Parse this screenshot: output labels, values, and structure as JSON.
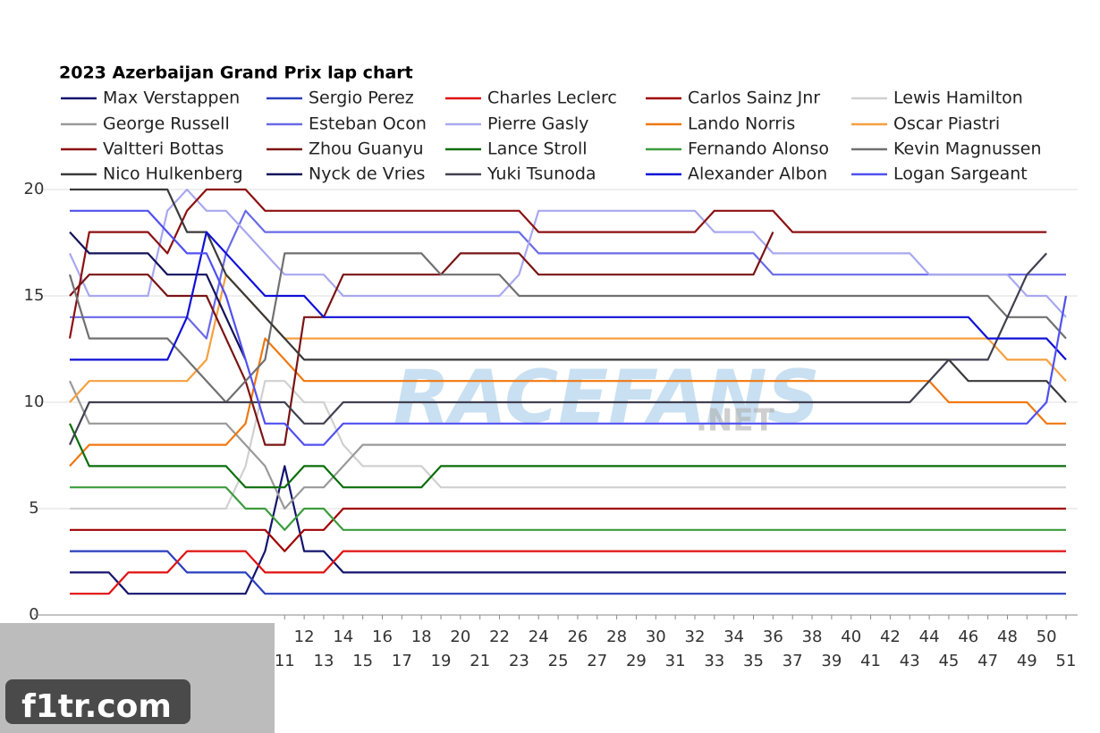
{
  "chart_data": {
    "type": "line",
    "title": "2023 Azerbaijan Grand Prix lap chart",
    "x": [
      0,
      1,
      2,
      3,
      4,
      5,
      6,
      7,
      8,
      9,
      10,
      11,
      12,
      13,
      14,
      15,
      16,
      17,
      18,
      19,
      20,
      21,
      22,
      23,
      24,
      25,
      26,
      27,
      28,
      29,
      30,
      31,
      32,
      33,
      34,
      35,
      36,
      37,
      38,
      39,
      40,
      41,
      42,
      43,
      44,
      45,
      46,
      47,
      48,
      49,
      50,
      51
    ],
    "xlim": [
      0,
      51
    ],
    "xticks": [
      11,
      12,
      13,
      14,
      15,
      16,
      17,
      18,
      19,
      20,
      21,
      22,
      23,
      24,
      25,
      26,
      27,
      28,
      29,
      30,
      31,
      32,
      33,
      34,
      35,
      36,
      37,
      38,
      39,
      40,
      41,
      42,
      43,
      44,
      45,
      46,
      47,
      48,
      49,
      50,
      51
    ],
    "ylim": [
      0,
      20
    ],
    "yticks": [
      0,
      5,
      10,
      15,
      20
    ],
    "grid": true,
    "series": [
      {
        "name": "Max Verstappen",
        "color": "#14146e",
        "values": [
          2,
          2,
          2,
          1,
          1,
          1,
          1,
          1,
          1,
          1,
          3,
          7,
          3,
          3,
          2,
          2,
          2,
          2,
          2,
          2,
          2,
          2,
          2,
          2,
          2,
          2,
          2,
          2,
          2,
          2,
          2,
          2,
          2,
          2,
          2,
          2,
          2,
          2,
          2,
          2,
          2,
          2,
          2,
          2,
          2,
          2,
          2,
          2,
          2,
          2,
          2,
          2
        ]
      },
      {
        "name": "Sergio Perez",
        "color": "#2a3fbf",
        "values": [
          3,
          3,
          3,
          3,
          3,
          3,
          2,
          2,
          2,
          2,
          1,
          1,
          1,
          1,
          1,
          1,
          1,
          1,
          1,
          1,
          1,
          1,
          1,
          1,
          1,
          1,
          1,
          1,
          1,
          1,
          1,
          1,
          1,
          1,
          1,
          1,
          1,
          1,
          1,
          1,
          1,
          1,
          1,
          1,
          1,
          1,
          1,
          1,
          1,
          1,
          1,
          1
        ]
      },
      {
        "name": "Charles Leclerc",
        "color": "#e01010",
        "values": [
          1,
          1,
          1,
          2,
          2,
          2,
          3,
          3,
          3,
          3,
          2,
          2,
          2,
          2,
          3,
          3,
          3,
          3,
          3,
          3,
          3,
          3,
          3,
          3,
          3,
          3,
          3,
          3,
          3,
          3,
          3,
          3,
          3,
          3,
          3,
          3,
          3,
          3,
          3,
          3,
          3,
          3,
          3,
          3,
          3,
          3,
          3,
          3,
          3,
          3,
          3,
          3
        ]
      },
      {
        "name": "Carlos Sainz Jnr",
        "color": "#a00000",
        "values": [
          4,
          4,
          4,
          4,
          4,
          4,
          4,
          4,
          4,
          4,
          4,
          3,
          4,
          4,
          5,
          5,
          5,
          5,
          5,
          5,
          5,
          5,
          5,
          5,
          5,
          5,
          5,
          5,
          5,
          5,
          5,
          5,
          5,
          5,
          5,
          5,
          5,
          5,
          5,
          5,
          5,
          5,
          5,
          5,
          5,
          5,
          5,
          5,
          5,
          5,
          5,
          5
        ]
      },
      {
        "name": "Lewis Hamilton",
        "color": "#d0d0d0",
        "values": [
          5,
          5,
          5,
          5,
          5,
          5,
          5,
          5,
          5,
          7,
          11,
          11,
          10,
          10,
          8,
          7,
          7,
          7,
          7,
          6,
          6,
          6,
          6,
          6,
          6,
          6,
          6,
          6,
          6,
          6,
          6,
          6,
          6,
          6,
          6,
          6,
          6,
          6,
          6,
          6,
          6,
          6,
          6,
          6,
          6,
          6,
          6,
          6,
          6,
          6,
          6,
          6
        ]
      },
      {
        "name": "George Russell",
        "color": "#999999",
        "values": [
          11,
          9,
          9,
          9,
          9,
          9,
          9,
          9,
          9,
          8,
          7,
          5,
          6,
          6,
          7,
          8,
          8,
          8,
          8,
          8,
          8,
          8,
          8,
          8,
          8,
          8,
          8,
          8,
          8,
          8,
          8,
          8,
          8,
          8,
          8,
          8,
          8,
          8,
          8,
          8,
          8,
          8,
          8,
          8,
          8,
          8,
          8,
          8,
          8,
          8,
          8,
          8
        ]
      },
      {
        "name": "Esteban Ocon",
        "color": "#6a6ae8",
        "values": [
          14,
          14,
          14,
          14,
          14,
          14,
          14,
          13,
          17,
          19,
          18,
          18,
          18,
          18,
          18,
          18,
          18,
          18,
          18,
          18,
          18,
          18,
          18,
          18,
          17,
          17,
          17,
          17,
          17,
          17,
          17,
          17,
          17,
          17,
          17,
          17,
          16,
          16,
          16,
          16,
          16,
          16,
          16,
          16,
          16,
          16,
          16,
          16,
          16,
          16,
          16,
          16
        ]
      },
      {
        "name": "Pierre Gasly",
        "color": "#a8a8f0",
        "values": [
          17,
          15,
          15,
          15,
          15,
          19,
          20,
          19,
          19,
          18,
          17,
          16,
          16,
          16,
          15,
          15,
          15,
          15,
          15,
          15,
          15,
          15,
          15,
          16,
          19,
          19,
          19,
          19,
          19,
          19,
          19,
          19,
          19,
          18,
          18,
          18,
          17,
          17,
          17,
          17,
          17,
          17,
          17,
          17,
          16,
          16,
          16,
          16,
          16,
          15,
          15,
          14
        ]
      },
      {
        "name": "Lando Norris",
        "color": "#f07810",
        "values": [
          7,
          8,
          8,
          8,
          8,
          8,
          8,
          8,
          8,
          9,
          13,
          12,
          11,
          11,
          11,
          11,
          11,
          11,
          11,
          11,
          11,
          11,
          11,
          11,
          11,
          11,
          11,
          11,
          11,
          11,
          11,
          11,
          11,
          11,
          11,
          11,
          11,
          11,
          11,
          11,
          11,
          11,
          11,
          11,
          11,
          10,
          10,
          10,
          10,
          10,
          9,
          9
        ]
      },
      {
        "name": "Oscar Piastri",
        "color": "#f5a040",
        "values": [
          10,
          11,
          11,
          11,
          11,
          11,
          11,
          12,
          16,
          15,
          14,
          13,
          13,
          13,
          13,
          13,
          13,
          13,
          13,
          13,
          13,
          13,
          13,
          13,
          13,
          13,
          13,
          13,
          13,
          13,
          13,
          13,
          13,
          13,
          13,
          13,
          13,
          13,
          13,
          13,
          13,
          13,
          13,
          13,
          13,
          13,
          13,
          13,
          12,
          12,
          12,
          11
        ]
      },
      {
        "name": "Valtteri Bottas",
        "color": "#8c1010",
        "values": [
          13,
          18,
          18,
          18,
          18,
          17,
          19,
          20,
          20,
          20,
          19,
          19,
          19,
          19,
          19,
          19,
          19,
          19,
          19,
          19,
          19,
          19,
          19,
          19,
          18,
          18,
          18,
          18,
          18,
          18,
          18,
          18,
          18,
          19,
          19,
          19,
          19,
          18,
          18,
          18,
          18,
          18,
          18,
          18,
          18,
          18,
          18,
          18,
          18,
          18,
          18,
          null
        ]
      },
      {
        "name": "Zhou Guanyu",
        "color": "#7a1414",
        "values": [
          15,
          16,
          16,
          16,
          16,
          15,
          15,
          15,
          13,
          11,
          8,
          8,
          14,
          14,
          16,
          16,
          16,
          16,
          16,
          16,
          17,
          17,
          17,
          17,
          16,
          16,
          16,
          16,
          16,
          16,
          16,
          16,
          16,
          16,
          16,
          16,
          18,
          null,
          null,
          null,
          null,
          null,
          null,
          null,
          null,
          null,
          null,
          null,
          null,
          null,
          null,
          null
        ]
      },
      {
        "name": "Lance Stroll",
        "color": "#0a6e0a",
        "values": [
          9,
          7,
          7,
          7,
          7,
          7,
          7,
          7,
          7,
          6,
          6,
          6,
          7,
          7,
          6,
          6,
          6,
          6,
          6,
          7,
          7,
          7,
          7,
          7,
          7,
          7,
          7,
          7,
          7,
          7,
          7,
          7,
          7,
          7,
          7,
          7,
          7,
          7,
          7,
          7,
          7,
          7,
          7,
          7,
          7,
          7,
          7,
          7,
          7,
          7,
          7,
          7
        ]
      },
      {
        "name": "Fernando Alonso",
        "color": "#3c9c3c",
        "values": [
          6,
          6,
          6,
          6,
          6,
          6,
          6,
          6,
          6,
          5,
          5,
          4,
          5,
          5,
          4,
          4,
          4,
          4,
          4,
          4,
          4,
          4,
          4,
          4,
          4,
          4,
          4,
          4,
          4,
          4,
          4,
          4,
          4,
          4,
          4,
          4,
          4,
          4,
          4,
          4,
          4,
          4,
          4,
          4,
          4,
          4,
          4,
          4,
          4,
          4,
          4,
          4
        ]
      },
      {
        "name": "Kevin Magnussen",
        "color": "#707070",
        "values": [
          16,
          13,
          13,
          13,
          13,
          13,
          12,
          11,
          10,
          11,
          12,
          17,
          17,
          17,
          17,
          17,
          17,
          17,
          17,
          16,
          16,
          16,
          16,
          15,
          15,
          15,
          15,
          15,
          15,
          15,
          15,
          15,
          15,
          15,
          15,
          15,
          15,
          15,
          15,
          15,
          15,
          15,
          15,
          15,
          15,
          15,
          15,
          15,
          14,
          14,
          14,
          13
        ]
      },
      {
        "name": "Nico Hulkenberg",
        "color": "#3a3a3a",
        "values": [
          20,
          20,
          20,
          20,
          20,
          20,
          18,
          18,
          16,
          15,
          14,
          13,
          12,
          12,
          12,
          12,
          12,
          12,
          12,
          12,
          12,
          12,
          12,
          12,
          12,
          12,
          12,
          12,
          12,
          12,
          12,
          12,
          12,
          12,
          12,
          12,
          12,
          12,
          12,
          12,
          12,
          12,
          12,
          12,
          12,
          12,
          11,
          11,
          11,
          11,
          11,
          10
        ]
      },
      {
        "name": "Nyck de Vries",
        "color": "#12125a",
        "values": [
          18,
          17,
          17,
          17,
          17,
          16,
          16,
          16,
          14,
          12,
          null,
          null,
          null,
          null,
          null,
          null,
          null,
          null,
          null,
          null,
          null,
          null,
          null,
          null,
          null,
          null,
          null,
          null,
          null,
          null,
          null,
          null,
          null,
          null,
          null,
          null,
          null,
          null,
          null,
          null,
          null,
          null,
          null,
          null,
          null,
          null,
          null,
          null,
          null,
          null,
          null,
          null
        ]
      },
      {
        "name": "Yuki Tsunoda",
        "color": "#404050",
        "values": [
          8,
          10,
          10,
          10,
          10,
          10,
          10,
          10,
          10,
          10,
          10,
          10,
          9,
          9,
          10,
          10,
          10,
          10,
          10,
          10,
          10,
          10,
          10,
          10,
          10,
          10,
          10,
          10,
          10,
          10,
          10,
          10,
          10,
          10,
          10,
          10,
          10,
          10,
          10,
          10,
          10,
          10,
          10,
          10,
          11,
          12,
          12,
          12,
          14,
          16,
          17,
          null
        ]
      },
      {
        "name": "Alexander Albon",
        "color": "#1010d8",
        "values": [
          12,
          12,
          12,
          12,
          12,
          12,
          14,
          18,
          17,
          16,
          15,
          15,
          15,
          14,
          14,
          14,
          14,
          14,
          14,
          14,
          14,
          14,
          14,
          14,
          14,
          14,
          14,
          14,
          14,
          14,
          14,
          14,
          14,
          14,
          14,
          14,
          14,
          14,
          14,
          14,
          14,
          14,
          14,
          14,
          14,
          14,
          14,
          13,
          13,
          13,
          13,
          12
        ]
      },
      {
        "name": "Logan Sargeant",
        "color": "#5050f0",
        "values": [
          19,
          19,
          19,
          19,
          19,
          18,
          17,
          17,
          15,
          12,
          9,
          9,
          8,
          8,
          9,
          9,
          9,
          9,
          9,
          9,
          9,
          9,
          9,
          9,
          9,
          9,
          9,
          9,
          9,
          9,
          9,
          9,
          9,
          9,
          9,
          9,
          9,
          9,
          9,
          9,
          9,
          9,
          9,
          9,
          9,
          9,
          9,
          9,
          9,
          9,
          10,
          15
        ]
      }
    ]
  },
  "watermarks": {
    "brand": "RACEFANS",
    "suffix": ".NET",
    "corner": "f1tr.com"
  }
}
